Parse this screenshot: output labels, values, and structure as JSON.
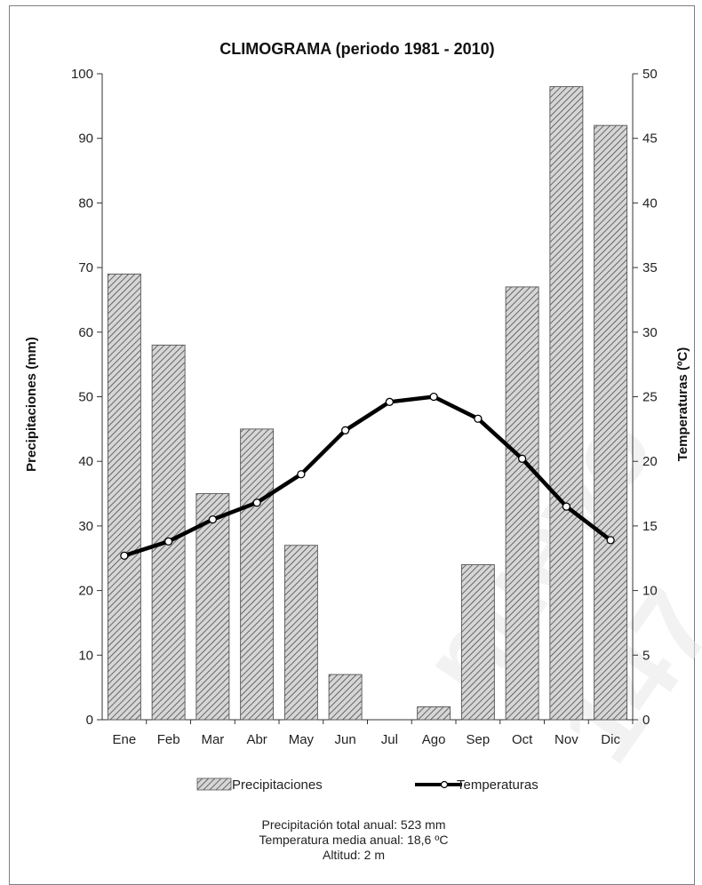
{
  "chart_data": {
    "type": "bar",
    "title": "CLIMOGRAMA (periodo 1981 - 2010)",
    "categories": [
      "Ene",
      "Feb",
      "Mar",
      "Abr",
      "May",
      "Jun",
      "Jul",
      "Ago",
      "Sep",
      "Oct",
      "Nov",
      "Dic"
    ],
    "series": [
      {
        "name": "Precipitaciones",
        "type": "bar",
        "axis": "left",
        "values": [
          69,
          58,
          35,
          45,
          27,
          7,
          0,
          2,
          24,
          67,
          98,
          92
        ]
      },
      {
        "name": "Temperaturas",
        "type": "line",
        "axis": "right",
        "values": [
          12.7,
          13.8,
          15.5,
          16.8,
          19.0,
          22.4,
          24.6,
          25.0,
          23.3,
          20.2,
          16.5,
          13.9
        ]
      }
    ],
    "ylabel": "Precipitaciones (mm)",
    "y2label": "Temperaturas (ºC)",
    "ylim": [
      0,
      100
    ],
    "y2lim": [
      0,
      50
    ],
    "yticks": [
      "0",
      "10",
      "20",
      "30",
      "40",
      "50",
      "60",
      "70",
      "80",
      "90",
      "100"
    ],
    "y2ticks": [
      "0",
      "5",
      "10",
      "15",
      "20",
      "25",
      "30",
      "35",
      "40",
      "45",
      "50"
    ],
    "grid": false,
    "legend_position": "bottom",
    "colors": {
      "bar_fill": "#c8c8c8",
      "bar_hatch": "#555555",
      "line": "#000000"
    }
  },
  "stats": {
    "line1": "Precipitación total anual: 523 mm",
    "line2": "Temperatura  media anual:  18,6 ºC",
    "line3": "Altitud: 2  m"
  },
  "watermark": {
    "text1": "nuevo",
    "text2": "147"
  }
}
